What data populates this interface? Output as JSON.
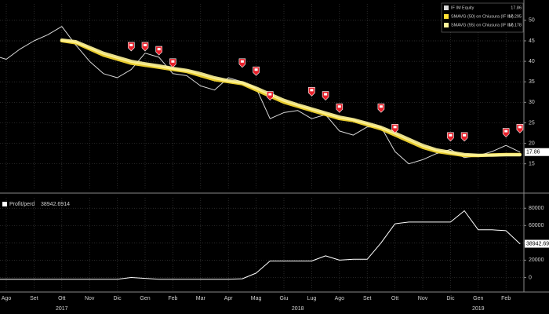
{
  "chart_data": [
    {
      "type": "line",
      "ylim": [
        9,
        54
      ],
      "yticks": [
        15,
        20,
        25,
        30,
        35,
        40,
        45,
        50
      ],
      "grid": true,
      "series": [
        {
          "name": "IF IM Equity",
          "color": "#d9d9d9",
          "values": [
            41.5,
            40.5,
            43,
            45,
            46.5,
            48.5,
            44,
            40,
            37,
            36,
            38,
            42,
            41,
            37,
            36.5,
            34,
            33,
            36,
            35,
            33.5,
            26,
            27.5,
            28,
            26,
            27,
            23,
            22,
            24,
            24,
            18,
            15,
            16,
            17.5,
            18.5,
            16.5,
            17,
            18,
            19.5,
            17.86
          ]
        },
        {
          "name": "SMAVG (50)  on Chiusura (IF IM)",
          "color": "#ffe033",
          "values": [
            null,
            null,
            null,
            null,
            null,
            45,
            44.5,
            43,
            41.5,
            40.5,
            39.5,
            39,
            38.5,
            38,
            37.5,
            36.5,
            35.5,
            35,
            34.5,
            33,
            31.5,
            30,
            29,
            28,
            27,
            26,
            25.5,
            24.5,
            23.5,
            22,
            20.5,
            19,
            18,
            17.5,
            17,
            17,
            17.2,
            17.3,
            17.295
          ]
        },
        {
          "name": "SMAVG (55)  on Chiusura (IF IM)",
          "color": "#fff59a",
          "values": [
            null,
            null,
            null,
            null,
            null,
            45.2,
            44.8,
            43.4,
            42,
            41,
            40,
            39.4,
            38.9,
            38.3,
            37.8,
            37,
            36,
            35.3,
            34.8,
            33.5,
            32,
            30.5,
            29.4,
            28.4,
            27.4,
            26.4,
            25.8,
            24.9,
            23.9,
            22.5,
            21,
            19.5,
            18.4,
            17.8,
            17.3,
            17.1,
            17.1,
            17.2,
            17.178
          ]
        }
      ],
      "markers": {
        "color": "#e8202a",
        "x": [
          10,
          11,
          12,
          13,
          18,
          19,
          20,
          23,
          24,
          25,
          28,
          29,
          33,
          34,
          37,
          38
        ],
        "values": [
          41,
          41,
          40,
          37,
          37,
          35,
          29,
          30,
          29,
          26,
          26,
          21,
          19,
          19,
          20,
          21
        ]
      }
    },
    {
      "type": "line",
      "ylim": [
        -15000,
        92000
      ],
      "yticks": [
        0,
        20000,
        40000,
        60000,
        80000
      ],
      "grid": true,
      "categories": [
        null,
        "Ago",
        null,
        "Set",
        null,
        "Ott",
        null,
        "Nov",
        null,
        "Dic",
        null,
        "Gen",
        null,
        "Feb",
        null,
        "Mar",
        null,
        "Apr",
        null,
        "Mag",
        null,
        "Giu",
        null,
        "Lug",
        null,
        "Ago",
        null,
        "Set",
        null,
        "Ott",
        null,
        "Nov",
        null,
        "Dic",
        null,
        "Gen",
        null,
        "Feb",
        null
      ],
      "years": [
        2017,
        2018,
        2019
      ],
      "series": [
        {
          "name": "Profit/perd",
          "color": "#ffffff",
          "values": [
            -2000,
            -2000,
            -2000,
            -2000,
            -2000,
            -2000,
            -2000,
            -2000,
            -2000,
            -2000,
            0,
            -1000,
            -2000,
            -2000,
            -2000,
            -2000,
            -2000,
            -2000,
            -1500,
            5000,
            19000,
            19000,
            19000,
            19000,
            25000,
            20000,
            21000,
            21000,
            40000,
            62000,
            64000,
            64000,
            64000,
            64000,
            77000,
            55000,
            55000,
            54000,
            38942.6914
          ]
        }
      ]
    }
  ]
}
